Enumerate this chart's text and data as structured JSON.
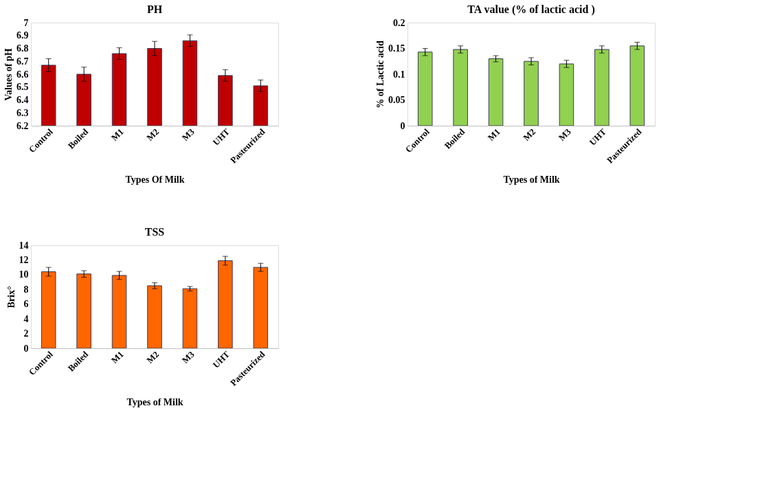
{
  "chart_data": [
    {
      "type": "bar",
      "title": "PH",
      "xlabel": "Types Of Milk",
      "ylabel": "Values of pH",
      "categories": [
        "Control",
        "Boiled",
        "M1",
        "M2",
        "M3",
        "UHT",
        "Pasteurized"
      ],
      "values": [
        6.67,
        6.6,
        6.76,
        6.8,
        6.86,
        6.59,
        6.51
      ],
      "errors": [
        0.05,
        0.055,
        0.045,
        0.055,
        0.045,
        0.045,
        0.045
      ],
      "color": "#c00000",
      "ylim": [
        6.2,
        7
      ],
      "yticks": [
        6.2,
        6.3,
        6.4,
        6.5,
        6.6,
        6.7,
        6.8,
        6.9,
        7
      ],
      "grid": false
    },
    {
      "type": "bar",
      "title": "TA  value (% of lactic acid )",
      "xlabel": "Types of Milk",
      "ylabel": "% of Lactic acid",
      "categories": [
        "Control",
        "Boiled",
        "M1",
        "M2",
        "M3",
        "UHT",
        "Pasteurized"
      ],
      "values": [
        0.143,
        0.148,
        0.13,
        0.125,
        0.12,
        0.148,
        0.155
      ],
      "errors": [
        0.007,
        0.007,
        0.006,
        0.007,
        0.007,
        0.007,
        0.007
      ],
      "color": "#92d050",
      "ylim": [
        0,
        0.2
      ],
      "yticks": [
        0,
        0.05,
        0.1,
        0.15,
        0.2
      ],
      "grid": false
    },
    {
      "type": "bar",
      "title": "TSS",
      "xlabel": "Types of Milk",
      "ylabel": "Brix°",
      "categories": [
        "Control",
        "Boiled",
        "M1",
        "M2",
        "M3",
        "UHT",
        "Pasteurized"
      ],
      "values": [
        10.4,
        10.1,
        9.9,
        8.5,
        8.1,
        11.9,
        11.0
      ],
      "errors": [
        0.6,
        0.45,
        0.55,
        0.4,
        0.3,
        0.6,
        0.55
      ],
      "color": "#ff6600",
      "ylim": [
        0,
        14
      ],
      "yticks": [
        0,
        2,
        4,
        6,
        8,
        10,
        12,
        14
      ],
      "grid": false
    }
  ]
}
